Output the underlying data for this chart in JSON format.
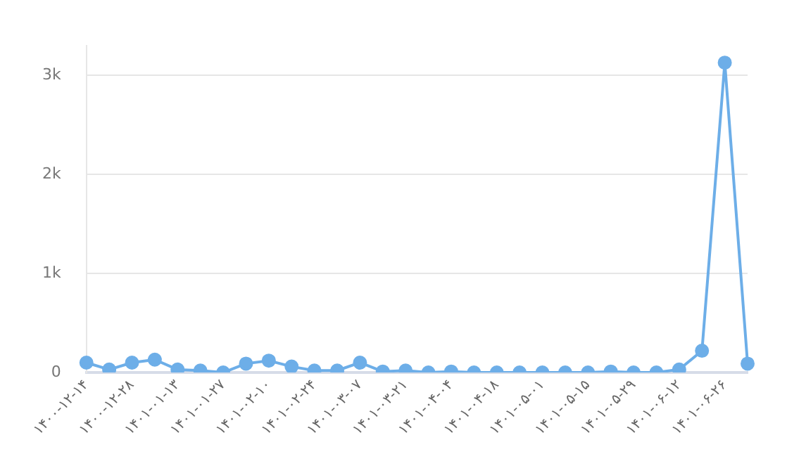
{
  "chart_data": {
    "type": "line",
    "categories": [
      "۱۴۰۰-۱۲-۱۴",
      null,
      "۱۴۰۰-۱۲-۲۸",
      null,
      "۱۴۰۱-۰۱-۱۳",
      null,
      "۱۴۰۱-۰۱-۲۷",
      null,
      "۱۴۰۱-۰۲-۱۰",
      null,
      "۱۴۰۱-۰۲-۲۴",
      null,
      "۱۴۰۱-۰۳-۰۷",
      null,
      "۱۴۰۱-۰۳-۲۱",
      null,
      "۱۴۰۱-۰۴-۰۴",
      null,
      "۱۴۰۱-۰۴-۱۸",
      null,
      "۱۴۰۱-۰۵-۰۱",
      null,
      "۱۴۰۱-۰۵-۱۵",
      null,
      "۱۴۰۱-۰۵-۲۹",
      null,
      "۱۴۰۱-۰۶-۱۲",
      null,
      "۱۴۰۱-۰۶-۲۶",
      null
    ],
    "series": [
      {
        "color": "#6daee8",
        "values": [
          100,
          30,
          100,
          130,
          30,
          20,
          0,
          90,
          120,
          60,
          20,
          20,
          100,
          10,
          20,
          0,
          10,
          0,
          0,
          0,
          0,
          0,
          0,
          10,
          0,
          0,
          30,
          220,
          3130,
          90
        ]
      }
    ],
    "yticks": [
      {
        "value": 0,
        "label": "0"
      },
      {
        "value": 1000,
        "label": "1k"
      },
      {
        "value": 2000,
        "label": "2k"
      },
      {
        "value": 3000,
        "label": "3k"
      }
    ],
    "ylim": [
      0,
      3300
    ],
    "grid": "y",
    "legend": false,
    "marker": "circle",
    "line_style": "solid"
  }
}
